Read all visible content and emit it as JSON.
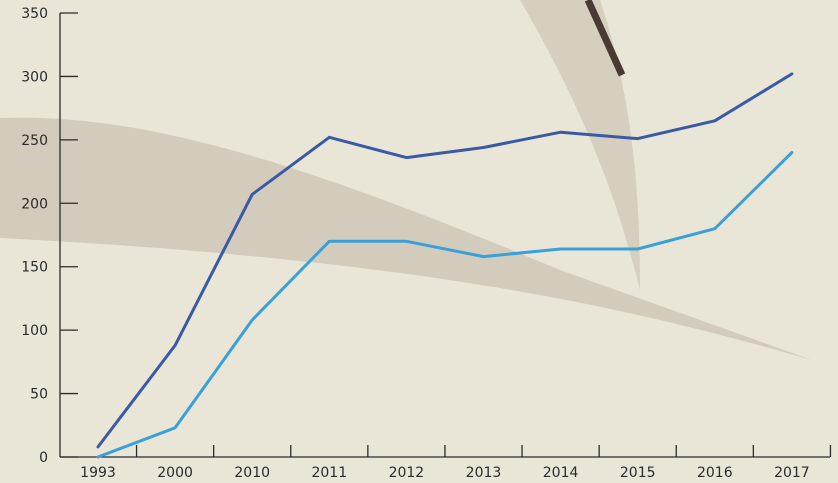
{
  "chart_data": {
    "type": "line",
    "categories": [
      "1993",
      "2000",
      "2010",
      "2011",
      "2012",
      "2013",
      "2014",
      "2015",
      "2016",
      "2017"
    ],
    "series": [
      {
        "color": "#3a5aa6",
        "values": [
          8,
          88,
          207,
          252,
          236,
          244,
          256,
          251,
          265,
          302
        ]
      },
      {
        "color": "#3aa0d8",
        "values": [
          0,
          23,
          108,
          170,
          170,
          158,
          164,
          164,
          180,
          240
        ]
      }
    ],
    "ylim": [
      0,
      350
    ],
    "yticks": [
      0,
      50,
      100,
      150,
      200,
      250,
      300,
      350
    ],
    "title": "",
    "xlabel": "",
    "ylabel": "",
    "grid": false,
    "axis_color": "#2b2b2b"
  }
}
